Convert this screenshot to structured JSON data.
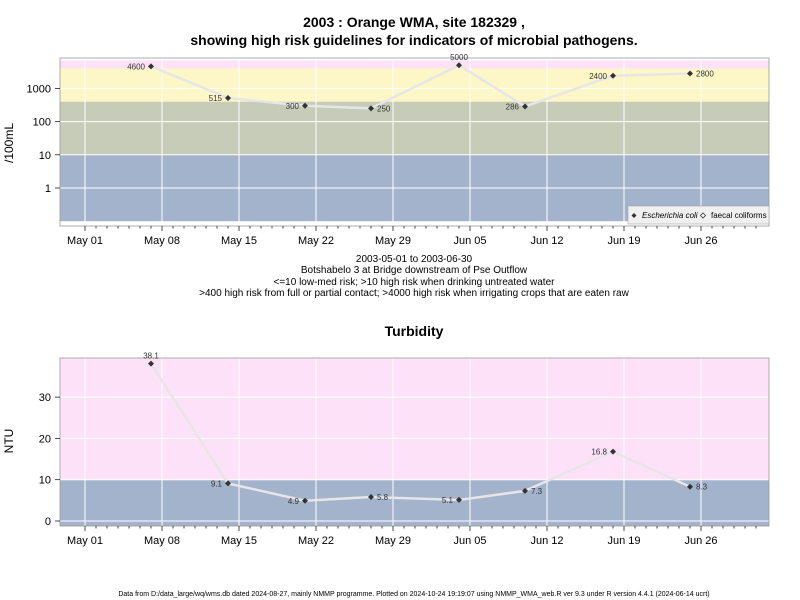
{
  "footer": "Data from D:/data_large/wq/wms.db dated 2024-08-27, mainly NMMP programme. Plotted on 2024-10-24 19:19:07 using NMMP_WMA_web.R ver 9.3 under R version 4.4.1 (2024-06-14 ucrt)",
  "info": {
    "date_range": "2003-05-01 to 2003-06-30",
    "site_desc": "Botshabelo 3 at Bridge downstream of Pse Outflow",
    "guide1": "<=10 low-med risk; >10 high risk when drinking untreated water",
    "guide2": ">400 high risk from full or partial contact; >4000 high risk when irrigating crops that are eaten raw"
  },
  "colors": {
    "band_low": "#a3b3cc",
    "band_mid": "#c6ccb8",
    "band_high": "#fdf6c6",
    "band_top": "#fde1f9",
    "line": "#e6e6e6",
    "grid": "#ffffff",
    "point": "#333333"
  },
  "chart_data": [
    {
      "type": "line",
      "title_line1": "2003 : Orange WMA, site 182329 ,",
      "title_line2": "showing high risk guidelines for indicators of microbial pathogens.",
      "ylabel": "/100mL",
      "yscale": "log",
      "x_tick_labels": [
        "May 01",
        "May 08",
        "May 15",
        "May 22",
        "May 29",
        "Jun 05",
        "Jun 12",
        "Jun 19",
        "Jun 26"
      ],
      "y_tick_labels": [
        "1",
        "10",
        "100",
        "1000"
      ],
      "bands": [
        {
          "from": 0.1,
          "to": 10,
          "color": "band_low"
        },
        {
          "from": 10,
          "to": 400,
          "color": "band_mid"
        },
        {
          "from": 400,
          "to": 4000,
          "color": "band_high"
        },
        {
          "from": 4000,
          "to": 7000,
          "color": "band_top"
        }
      ],
      "series": [
        {
          "name": "Escherichia coli",
          "x": [
            "2003-05-07",
            "2003-05-14",
            "2003-05-21",
            "2003-05-27",
            "2003-06-04",
            "2003-06-10",
            "2003-06-18",
            "2003-06-25"
          ],
          "values": [
            4600,
            515,
            300,
            250,
            5000,
            286,
            2400,
            2800
          ],
          "labels": [
            "4600",
            "515",
            "300",
            "250",
            "5000",
            "286",
            "2400",
            "2800"
          ]
        }
      ],
      "legend": {
        "position": "bottom-right",
        "entries": [
          {
            "label": "Escherichia coli",
            "marker": "filled-diamond"
          },
          {
            "label": "faecal coliforms",
            "marker": "open-diamond"
          }
        ]
      }
    },
    {
      "type": "line",
      "title": "Turbidity",
      "ylabel": "NTU",
      "x_tick_labels": [
        "May 01",
        "May 08",
        "May 15",
        "May 22",
        "May 29",
        "Jun 05",
        "Jun 12",
        "Jun 19",
        "Jun 26"
      ],
      "y_tick_labels": [
        "0",
        "10",
        "20",
        "30"
      ],
      "bands": [
        {
          "from": -1.5,
          "to": 10,
          "color": "band_low"
        },
        {
          "from": 10,
          "to": 39.5,
          "color": "band_top"
        }
      ],
      "series": [
        {
          "name": "",
          "x": [
            "2003-05-07",
            "2003-05-14",
            "2003-05-21",
            "2003-05-27",
            "2003-06-04",
            "2003-06-10",
            "2003-06-18",
            "2003-06-25"
          ],
          "values": [
            38.1,
            9.1,
            4.9,
            5.8,
            5.1,
            7.3,
            16.8,
            8.3
          ],
          "labels": [
            "38.1",
            "9.1",
            "4.9",
            "5.8",
            "5.1",
            "7.3",
            "16.8",
            "8.3"
          ]
        }
      ]
    }
  ]
}
